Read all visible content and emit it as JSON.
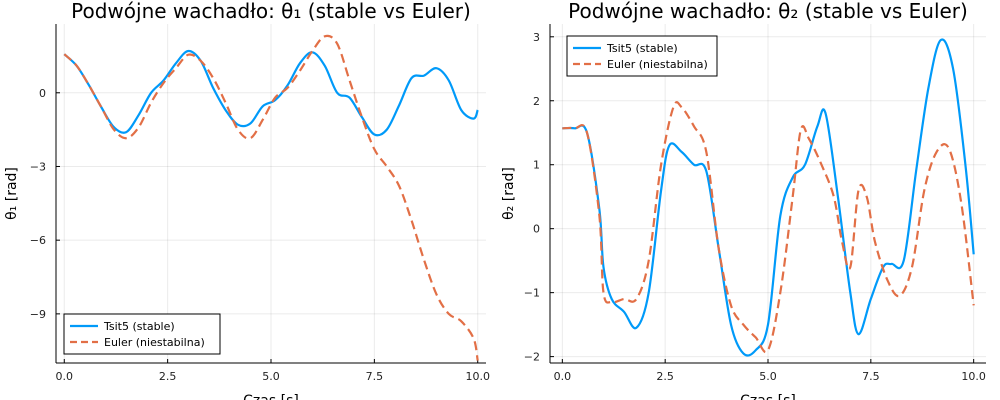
{
  "chart_data": [
    {
      "type": "line",
      "title": "Podwójne wachadło: θ₁ (stable vs Euler)",
      "xlabel": "Czas [s]",
      "ylabel": "θ₁ [rad]",
      "xlim": [
        -0.2,
        10.2
      ],
      "ylim": [
        -11.0,
        2.8
      ],
      "xticks": [
        0.0,
        2.5,
        5.0,
        7.5,
        10.0
      ],
      "xtick_labels": [
        "0.0",
        "2.5",
        "5.0",
        "7.5",
        "10.0"
      ],
      "yticks": [
        -9,
        -6,
        -3,
        0
      ],
      "ytick_labels": [
        "−9",
        "−6",
        "−3",
        "0"
      ],
      "grid": true,
      "legend_position": "bottom-left",
      "series": [
        {
          "name": "Tsit5 (stable)",
          "color": "#009AF9",
          "style": "solid",
          "x": [
            0.0,
            0.3,
            0.6,
            0.9,
            1.2,
            1.5,
            1.8,
            2.1,
            2.4,
            2.7,
            3.0,
            3.3,
            3.6,
            3.9,
            4.2,
            4.5,
            4.8,
            5.1,
            5.4,
            5.7,
            6.0,
            6.3,
            6.6,
            6.9,
            7.2,
            7.5,
            7.8,
            8.1,
            8.4,
            8.7,
            9.0,
            9.3,
            9.6,
            9.9,
            10.0
          ],
          "y": [
            1.57,
            1.1,
            0.3,
            -0.6,
            -1.4,
            -1.6,
            -0.9,
            0.0,
            0.5,
            1.2,
            1.7,
            1.3,
            0.2,
            -0.7,
            -1.3,
            -1.25,
            -0.55,
            -0.3,
            0.3,
            1.2,
            1.65,
            1.1,
            0.0,
            -0.2,
            -1.0,
            -1.7,
            -1.5,
            -0.5,
            0.6,
            0.7,
            1.0,
            0.5,
            -0.7,
            -1.05,
            -0.7
          ]
        },
        {
          "name": "Euler (niestabilna)",
          "color": "#E26F46",
          "style": "dashed",
          "x": [
            0.0,
            0.3,
            0.6,
            0.9,
            1.2,
            1.5,
            1.8,
            2.1,
            2.4,
            2.7,
            3.0,
            3.3,
            3.6,
            3.9,
            4.2,
            4.5,
            4.8,
            5.1,
            5.4,
            5.7,
            6.0,
            6.3,
            6.6,
            6.9,
            7.2,
            7.5,
            7.8,
            8.1,
            8.4,
            8.7,
            9.0,
            9.3,
            9.6,
            9.9,
            10.0
          ],
          "y": [
            1.57,
            1.1,
            0.3,
            -0.6,
            -1.5,
            -1.85,
            -1.4,
            -0.4,
            0.4,
            1.0,
            1.55,
            1.3,
            0.6,
            -0.4,
            -1.5,
            -1.85,
            -1.1,
            -0.2,
            0.2,
            0.9,
            1.7,
            2.3,
            2.0,
            0.5,
            -1.0,
            -2.3,
            -3.0,
            -3.8,
            -5.2,
            -6.8,
            -8.2,
            -9.0,
            -9.3,
            -10.0,
            -10.9
          ]
        }
      ]
    },
    {
      "type": "line",
      "title": "Podwójne wachadło: θ₂ (stable vs Euler)",
      "xlabel": "Czas [s]",
      "ylabel": "θ₂ [rad]",
      "xlim": [
        -0.3,
        10.3
      ],
      "ylim": [
        -2.1,
        3.2
      ],
      "xticks": [
        0.0,
        2.5,
        5.0,
        7.5,
        10.0
      ],
      "xtick_labels": [
        "0.0",
        "2.5",
        "5.0",
        "7.5",
        "10.0"
      ],
      "yticks": [
        -2,
        -1,
        0,
        1,
        2,
        3
      ],
      "ytick_labels": [
        "−2",
        "−1",
        "0",
        "1",
        "2",
        "3"
      ],
      "grid": true,
      "legend_position": "top-left",
      "series": [
        {
          "name": "Tsit5 (stable)",
          "color": "#009AF9",
          "style": "solid",
          "x": [
            0.0,
            0.3,
            0.6,
            0.9,
            1.0,
            1.2,
            1.5,
            1.8,
            2.1,
            2.4,
            2.6,
            2.9,
            3.2,
            3.5,
            3.8,
            4.1,
            4.4,
            4.7,
            5.0,
            5.3,
            5.6,
            5.9,
            6.2,
            6.4,
            6.7,
            7.0,
            7.2,
            7.5,
            7.8,
            8.0,
            8.3,
            8.6,
            8.9,
            9.2,
            9.5,
            9.8,
            10.0
          ],
          "y": [
            1.57,
            1.57,
            1.5,
            0.3,
            -0.6,
            -1.1,
            -1.3,
            -1.55,
            -1.0,
            0.6,
            1.3,
            1.2,
            1.0,
            0.9,
            -0.3,
            -1.5,
            -1.95,
            -1.9,
            -1.5,
            0.2,
            0.8,
            1.0,
            1.6,
            1.8,
            0.5,
            -1.0,
            -1.65,
            -1.1,
            -0.6,
            -0.55,
            -0.5,
            0.9,
            2.2,
            2.95,
            2.5,
            1.0,
            -0.4
          ]
        },
        {
          "name": "Euler (niestabilna)",
          "color": "#E26F46",
          "style": "dashed",
          "x": [
            0.0,
            0.3,
            0.6,
            0.9,
            1.0,
            1.2,
            1.5,
            1.8,
            2.1,
            2.4,
            2.7,
            2.9,
            3.2,
            3.5,
            3.8,
            4.1,
            4.4,
            4.7,
            5.0,
            5.3,
            5.6,
            5.8,
            6.0,
            6.3,
            6.6,
            6.8,
            7.0,
            7.2,
            7.4,
            7.6,
            7.9,
            8.2,
            8.5,
            8.8,
            9.1,
            9.4,
            9.7,
            10.0
          ],
          "y": [
            1.57,
            1.57,
            1.5,
            0.2,
            -1.0,
            -1.15,
            -1.1,
            -1.1,
            -0.5,
            1.0,
            1.9,
            1.9,
            1.6,
            1.2,
            -0.3,
            -1.2,
            -1.5,
            -1.7,
            -1.9,
            -1.0,
            0.5,
            1.55,
            1.4,
            1.0,
            0.5,
            -0.2,
            -0.6,
            0.6,
            0.5,
            -0.2,
            -0.8,
            -1.05,
            -0.6,
            0.6,
            1.2,
            1.25,
            0.4,
            -1.2
          ]
        }
      ]
    }
  ]
}
